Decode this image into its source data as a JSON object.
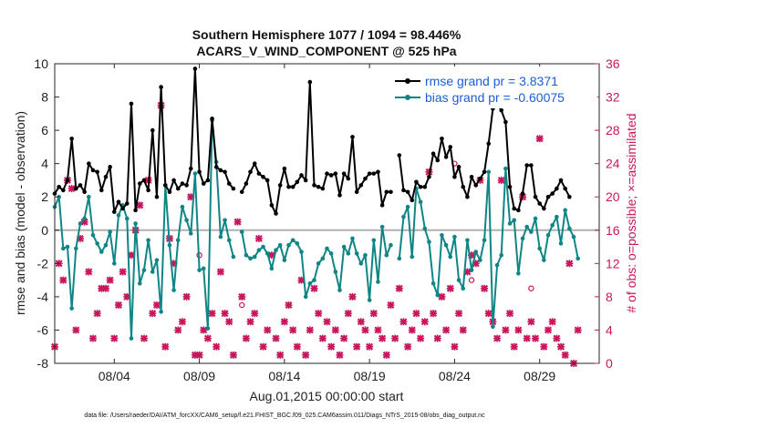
{
  "chart_data": {
    "type": "line",
    "title": "Southern Hemisphere 1077 / 1094 = 98.446%",
    "subtitle": "ACARS_V_WIND_COMPONENT @ 525 hPa",
    "xlabel": "Aug.01,2015 00:00:00 start",
    "ylabel": "rmse and bias (model - observation)",
    "y2label": "# of obs: o=possible; ×=assimilated",
    "xlim": [
      0,
      32
    ],
    "ylim": [
      -8,
      10
    ],
    "y2lim": [
      0,
      36
    ],
    "x_ticks": [
      {
        "pos": 3.5,
        "label": "08/04"
      },
      {
        "pos": 8.5,
        "label": "08/09"
      },
      {
        "pos": 13.5,
        "label": "08/14"
      },
      {
        "pos": 18.5,
        "label": "08/19"
      },
      {
        "pos": 23.5,
        "label": "08/24"
      },
      {
        "pos": 28.5,
        "label": "08/29"
      }
    ],
    "y_ticks": [
      10,
      8,
      6,
      4,
      2,
      0,
      -2,
      -4,
      -6,
      -8
    ],
    "y2_ticks": [
      36,
      32,
      28,
      24,
      20,
      16,
      12,
      8,
      4,
      0
    ],
    "zero_line": 0,
    "legend": [
      {
        "label": "rmse grand pr = 3.8371",
        "color": "#000000"
      },
      {
        "label": "bias grand pr = -0.60075",
        "color": "#0f8585"
      }
    ],
    "series": [
      {
        "name": "rmse",
        "color": "#000000",
        "x": [
          0.0,
          0.25,
          0.5,
          0.75,
          1.0,
          1.25,
          1.5,
          1.75,
          2.0,
          2.25,
          2.5,
          2.75,
          3.0,
          3.25,
          3.5,
          3.75,
          4.0,
          4.25,
          4.5,
          4.75,
          5.0,
          5.25,
          5.5,
          5.75,
          6.0,
          6.25,
          6.5,
          6.75,
          7.0,
          7.25,
          7.5,
          7.75,
          8.0,
          8.25,
          8.5,
          8.75,
          9.0,
          9.25,
          9.5,
          9.75,
          10.0,
          10.25,
          10.5,
          10.75,
          11.0,
          11.25,
          11.5,
          11.75,
          12.0,
          12.25,
          12.5,
          12.75,
          13.0,
          13.25,
          13.5,
          13.75,
          14.0,
          14.25,
          14.5,
          14.75,
          15.0,
          15.25,
          15.5,
          15.75,
          16.0,
          16.25,
          16.5,
          16.75,
          17.0,
          17.25,
          17.5,
          17.75,
          18.0,
          18.25,
          18.5,
          18.75,
          19.0,
          19.25,
          19.5,
          19.75,
          20.0,
          20.25,
          20.5,
          20.75,
          21.0,
          21.25,
          21.5,
          21.75,
          22.0,
          22.25,
          22.5,
          22.75,
          23.0,
          23.25,
          23.5,
          23.75,
          24.0,
          24.25,
          24.5,
          24.75,
          25.0,
          25.25,
          25.5,
          25.75,
          26.0,
          26.25,
          26.5,
          26.75,
          27.0,
          27.25,
          27.5,
          27.75,
          28.0,
          28.25,
          28.5,
          28.75,
          29.0,
          29.25,
          29.5,
          29.75,
          30.0,
          30.25,
          30.5,
          30.75,
          31.0
        ],
        "values": [
          2.2,
          2.6,
          2.4,
          3.0,
          5.5,
          2.5,
          2.7,
          2.3,
          4.0,
          3.6,
          3.5,
          2.4,
          3.2,
          3.8,
          1.1,
          1.7,
          1.3,
          1.6,
          7.6,
          1.2,
          2.8,
          3.0,
          2.4,
          6.0,
          2.0,
          8.6,
          2.7,
          2.3,
          3.0,
          2.5,
          2.8,
          2.7,
          3.7,
          9.7,
          3.5,
          2.8,
          3.0,
          6.7,
          3.8,
          3.6,
          3.5,
          2.8,
          2.5,
          null,
          2.3,
          2.8,
          3.5,
          4.0,
          3.4,
          3.2,
          3.0,
          1.5,
          1.0,
          2.7,
          3.7,
          2.6,
          2.6,
          2.9,
          3.3,
          3.0,
          8.9,
          2.7,
          2.6,
          2.5,
          3.4,
          3.3,
          3.4,
          2.1,
          3.4,
          3.1,
          5.6,
          2.3,
          2.7,
          3.1,
          3.4,
          3.4,
          3.5,
          1.5,
          2.3,
          2.3,
          null,
          4.5,
          2.4,
          2.3,
          1.8,
          2.9,
          2.6,
          2.6,
          3.2,
          4.6,
          4.2,
          5.5,
          4.4,
          5.0,
          3.2,
          3.8,
          2.6,
          2.0,
          3.2,
          2.7,
          3.1,
          3.5,
          5.2,
          7.3,
          7.6,
          7.2,
          6.5,
          2.6,
          1.3,
          1.2,
          2.2,
          3.9,
          3.9,
          2.0,
          1.6,
          1.3,
          2.0,
          2.2,
          2.5,
          3.0,
          2.5,
          2.0,
          null,
          null,
          null
        ]
      },
      {
        "name": "bias",
        "color": "#0f8585",
        "x": [
          0.0,
          0.25,
          0.5,
          0.75,
          1.0,
          1.25,
          1.5,
          1.75,
          2.0,
          2.25,
          2.5,
          2.75,
          3.0,
          3.25,
          3.5,
          3.75,
          4.0,
          4.25,
          4.5,
          4.75,
          5.0,
          5.25,
          5.5,
          5.75,
          6.0,
          6.25,
          6.5,
          6.75,
          7.0,
          7.25,
          7.5,
          7.75,
          8.0,
          8.25,
          8.5,
          8.75,
          9.0,
          9.25,
          9.5,
          9.75,
          10.0,
          10.25,
          10.5,
          10.75,
          11.0,
          11.25,
          11.5,
          11.75,
          12.0,
          12.25,
          12.5,
          12.75,
          13.0,
          13.25,
          13.5,
          13.75,
          14.0,
          14.25,
          14.5,
          14.75,
          15.0,
          15.25,
          15.5,
          15.75,
          16.0,
          16.25,
          16.5,
          16.75,
          17.0,
          17.25,
          17.5,
          17.75,
          18.0,
          18.25,
          18.5,
          18.75,
          19.0,
          19.25,
          19.5,
          19.75,
          20.0,
          20.25,
          20.5,
          20.75,
          21.0,
          21.25,
          21.5,
          21.75,
          22.0,
          22.25,
          22.5,
          22.75,
          23.0,
          23.25,
          23.5,
          23.75,
          24.0,
          24.25,
          24.5,
          24.75,
          25.0,
          25.25,
          25.5,
          25.75,
          26.0,
          26.25,
          26.5,
          26.75,
          27.0,
          27.25,
          27.5,
          27.75,
          28.0,
          28.25,
          28.5,
          28.75,
          29.0,
          29.25,
          29.5,
          29.75,
          30.0,
          30.25,
          30.5,
          30.75,
          31.0
        ],
        "values": [
          1.4,
          2.0,
          -1.1,
          -1.0,
          -4.7,
          -1.1,
          0.4,
          0.7,
          2.0,
          -0.3,
          -0.8,
          -1.3,
          -0.9,
          -0.1,
          -2.0,
          0.9,
          1.5,
          0.7,
          -6.5,
          0.4,
          -3.2,
          -2.4,
          -0.6,
          -2.5,
          -1.8,
          -4.9,
          2.7,
          -0.9,
          -3.6,
          -0.6,
          1.4,
          0.6,
          -0.2,
          3.4,
          -2.4,
          -2.3,
          -5.9,
          6.6,
          4.1,
          -0.4,
          0.6,
          -0.6,
          -1.6,
          null,
          -0.1,
          -1.5,
          -1.7,
          -1.6,
          -1.2,
          -1.0,
          -1.4,
          -2.3,
          -1.2,
          -0.9,
          -1.8,
          -0.9,
          -0.6,
          -0.8,
          -1.3,
          -4.0,
          -3.2,
          -3.0,
          -2.0,
          -1.7,
          -1.1,
          -1.4,
          -2.5,
          -3.6,
          -1.0,
          -1.4,
          -0.5,
          -1.4,
          -2.0,
          -1.5,
          -4.2,
          -0.6,
          -3.1,
          0.2,
          -1.5,
          -0.9,
          null,
          -1.7,
          0.8,
          1.4,
          -1.6,
          2.5,
          1.7,
          0.1,
          -0.7,
          -3.2,
          -3.9,
          -0.3,
          -0.9,
          -1.6,
          -0.4,
          -3.0,
          -3.5,
          -0.6,
          -2.4,
          -1.3,
          -1.8,
          -0.6,
          3.5,
          -5.8,
          -2.1,
          -1.5,
          3.7,
          0.4,
          0.6,
          -2.6,
          -0.5,
          0.2,
          -0.1,
          0.7,
          -1.1,
          -1.8,
          -0.3,
          0.3,
          0.8,
          -0.8,
          1.2,
          0.1,
          -0.4,
          -1.7,
          null
        ]
      },
      {
        "name": "# obs assimilated",
        "color": "#c8175d",
        "axis": "right",
        "x": [
          0.0,
          0.25,
          0.5,
          0.75,
          1.0,
          1.25,
          1.5,
          1.75,
          2.0,
          2.25,
          2.5,
          2.75,
          3.0,
          3.25,
          3.5,
          3.75,
          4.0,
          4.25,
          4.5,
          4.75,
          5.0,
          5.25,
          5.5,
          5.75,
          6.0,
          6.25,
          6.5,
          6.75,
          7.0,
          7.25,
          7.5,
          7.75,
          8.0,
          8.25,
          8.5,
          8.75,
          9.0,
          9.25,
          9.5,
          9.75,
          10.0,
          10.25,
          10.5,
          10.75,
          11.0,
          11.25,
          11.5,
          11.75,
          12.0,
          12.25,
          12.5,
          12.75,
          13.0,
          13.25,
          13.5,
          13.75,
          14.0,
          14.25,
          14.5,
          14.75,
          15.0,
          15.25,
          15.5,
          15.75,
          16.0,
          16.25,
          16.5,
          16.75,
          17.0,
          17.25,
          17.5,
          17.75,
          18.0,
          18.25,
          18.5,
          18.75,
          19.0,
          19.25,
          19.5,
          19.75,
          20.0,
          20.25,
          20.5,
          20.75,
          21.0,
          21.25,
          21.5,
          21.75,
          22.0,
          22.25,
          22.5,
          22.75,
          23.0,
          23.25,
          23.5,
          23.75,
          24.0,
          24.25,
          24.5,
          24.75,
          25.0,
          25.25,
          25.5,
          25.75,
          26.0,
          26.25,
          26.5,
          26.75,
          27.0,
          27.25,
          27.5,
          27.75,
          28.0,
          28.25,
          28.5,
          28.75,
          29.0,
          29.25,
          29.5,
          29.75,
          30.0,
          30.25,
          30.5,
          30.75,
          31.0
        ],
        "values": [
          2,
          12,
          10,
          22,
          21,
          4,
          15,
          17,
          11,
          3,
          6,
          9,
          9,
          10,
          3,
          7,
          11,
          8,
          13,
          16,
          19,
          3,
          22,
          6,
          7,
          31,
          2,
          15,
          12,
          4,
          5,
          8,
          20,
          1,
          1,
          4,
          3,
          6,
          2,
          11,
          6,
          5,
          1,
          17,
          8,
          3,
          5,
          6,
          15,
          2,
          4,
          13,
          3,
          1,
          5,
          7,
          4,
          2,
          10,
          1,
          4,
          9,
          6,
          3,
          5,
          2,
          4,
          1,
          3,
          6,
          8,
          2,
          5,
          4,
          2,
          6,
          4,
          3,
          1,
          7,
          3,
          9,
          5,
          2,
          4,
          6,
          3,
          5,
          23,
          6,
          3,
          8,
          4,
          9,
          2,
          6,
          4,
          11,
          13,
          12,
          22,
          9,
          6,
          5,
          3,
          22,
          4,
          6,
          2,
          4,
          20,
          3,
          5,
          3,
          27,
          2,
          4,
          5,
          3,
          2,
          1,
          12,
          0,
          4,
          null
        ]
      },
      {
        "name": "# obs possible",
        "color": "#c8175d",
        "axis": "right",
        "marker": "circle",
        "x": [
          8.5,
          11.0,
          23.5,
          24.5,
          28.0
        ],
        "values": [
          13,
          7,
          24,
          10,
          9
        ]
      }
    ]
  },
  "footnote": "data file: /Users/raeder/DAI/ATM_forcXX/CAM6_setup/f.e21.FHIST_BGC.f09_025.CAM6assim.011/Diags_NTrS_2015-08/obs_diag_output.nc"
}
